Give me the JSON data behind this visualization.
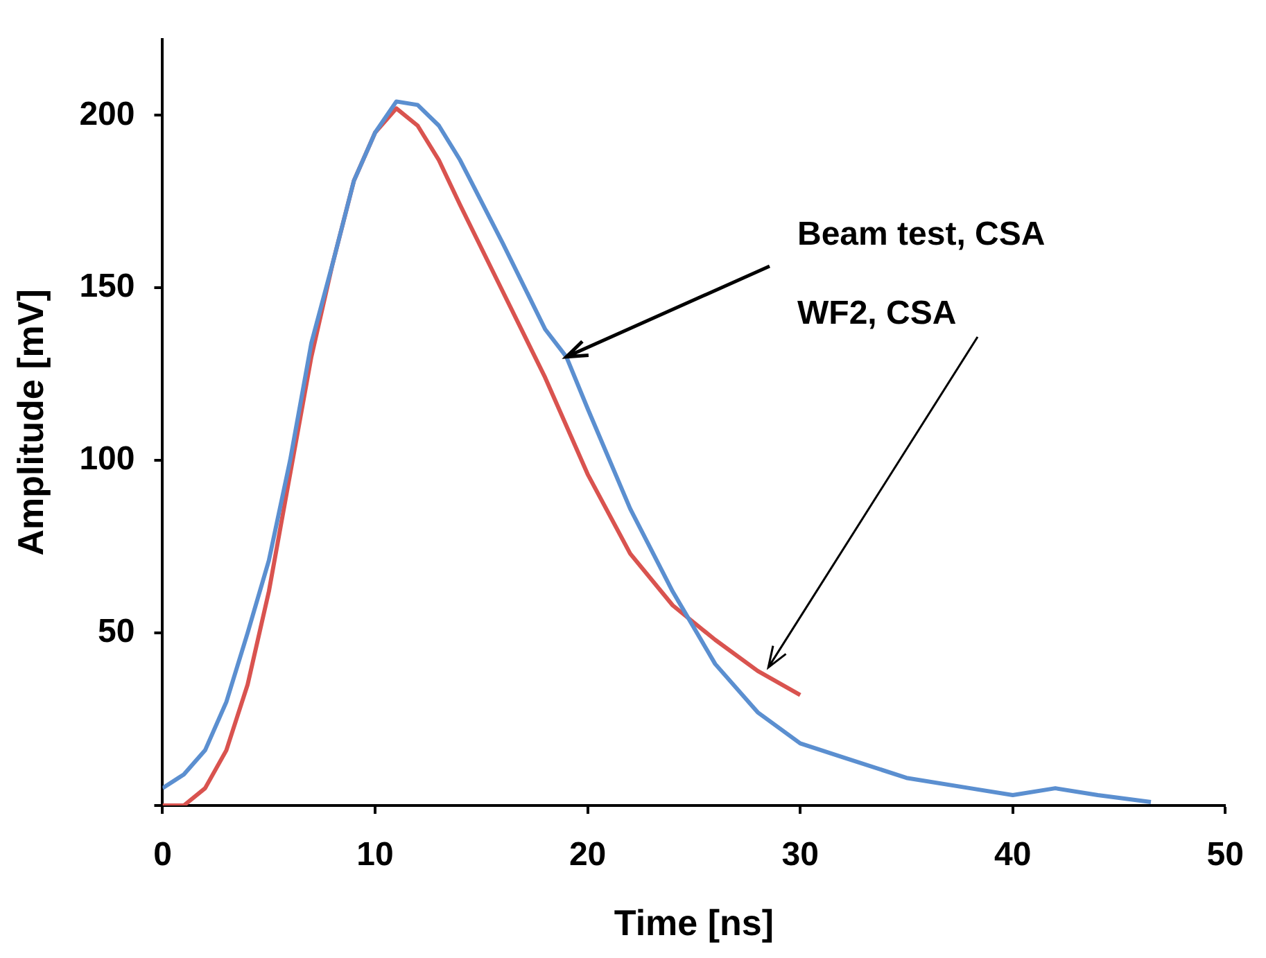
{
  "chart_data": {
    "type": "line",
    "xlabel": "Time [ns]",
    "ylabel": "Amplitude [mV]",
    "xlim": [
      0,
      50
    ],
    "xticks": [
      0,
      10,
      20,
      30,
      40,
      50
    ],
    "ylim": [
      0,
      222
    ],
    "yticks": [
      {
        "value": 0,
        "label": null
      },
      50,
      100,
      150,
      200
    ],
    "annotations": [
      {
        "text": "Beam test, CSA",
        "x": 19,
        "y": 130
      },
      {
        "text": "WF2, CSA",
        "x": 28.5,
        "y": 40
      }
    ],
    "grid": false,
    "legend": false,
    "marker": "none",
    "line_style": "solid",
    "series": [
      {
        "color": "#5b8fd0",
        "x": [
          0,
          1,
          2,
          3,
          4,
          5,
          6,
          7,
          8,
          9,
          10,
          11,
          12,
          13,
          14,
          16,
          18,
          19,
          20,
          22,
          24,
          26,
          28,
          30,
          32,
          35,
          38,
          40,
          42,
          44,
          46.5
        ],
        "values": [
          5,
          9,
          16,
          30,
          50,
          71,
          100,
          134,
          157,
          181,
          195,
          204,
          203,
          197,
          187,
          163,
          138,
          130,
          115,
          86,
          62,
          41,
          27,
          18,
          14,
          8,
          5,
          3,
          5,
          3,
          1
        ]
      },
      {
        "color": "#d9534f",
        "x": [
          0,
          1,
          2,
          3,
          4,
          5,
          6,
          7,
          8,
          9,
          10,
          11,
          12,
          13,
          14,
          16,
          18,
          20,
          22,
          24,
          26,
          28,
          30
        ],
        "values": [
          0,
          0,
          5,
          16,
          35,
          62,
          96,
          130,
          157,
          181,
          195,
          202,
          197,
          187,
          174,
          149,
          124,
          96,
          73,
          58,
          48,
          39,
          32
        ]
      }
    ]
  }
}
